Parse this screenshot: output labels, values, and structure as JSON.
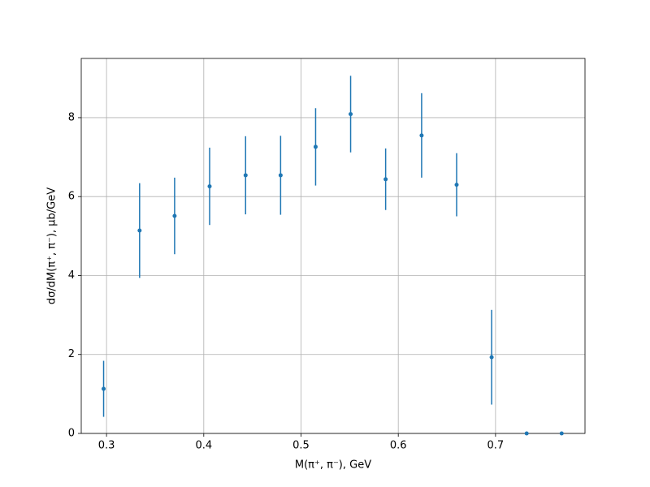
{
  "chart_data": {
    "type": "scatter",
    "x_label": "M(π⁺, π⁻), GeV",
    "y_label": "dσ/dM(π⁺, π⁻), μb/GeV",
    "x": [
      0.297,
      0.334,
      0.37,
      0.406,
      0.443,
      0.479,
      0.515,
      0.551,
      0.587,
      0.624,
      0.66,
      0.696,
      0.732,
      0.768
    ],
    "values": [
      1.13,
      5.14,
      5.51,
      6.26,
      6.54,
      6.54,
      7.26,
      8.09,
      6.44,
      7.55,
      6.3,
      1.93,
      0,
      0
    ],
    "errors": [
      0.71,
      1.2,
      0.97,
      0.98,
      0.99,
      1.0,
      0.98,
      0.97,
      0.78,
      1.07,
      0.8,
      1.2,
      0,
      0
    ],
    "color": "#1f77b4",
    "xlim": [
      0.274,
      0.792
    ],
    "ylim": [
      0,
      9.5
    ],
    "xticks": [
      0.3,
      0.4,
      0.5,
      0.6,
      0.7
    ],
    "yticks": [
      0,
      2,
      4,
      6,
      8
    ],
    "grid": true
  }
}
